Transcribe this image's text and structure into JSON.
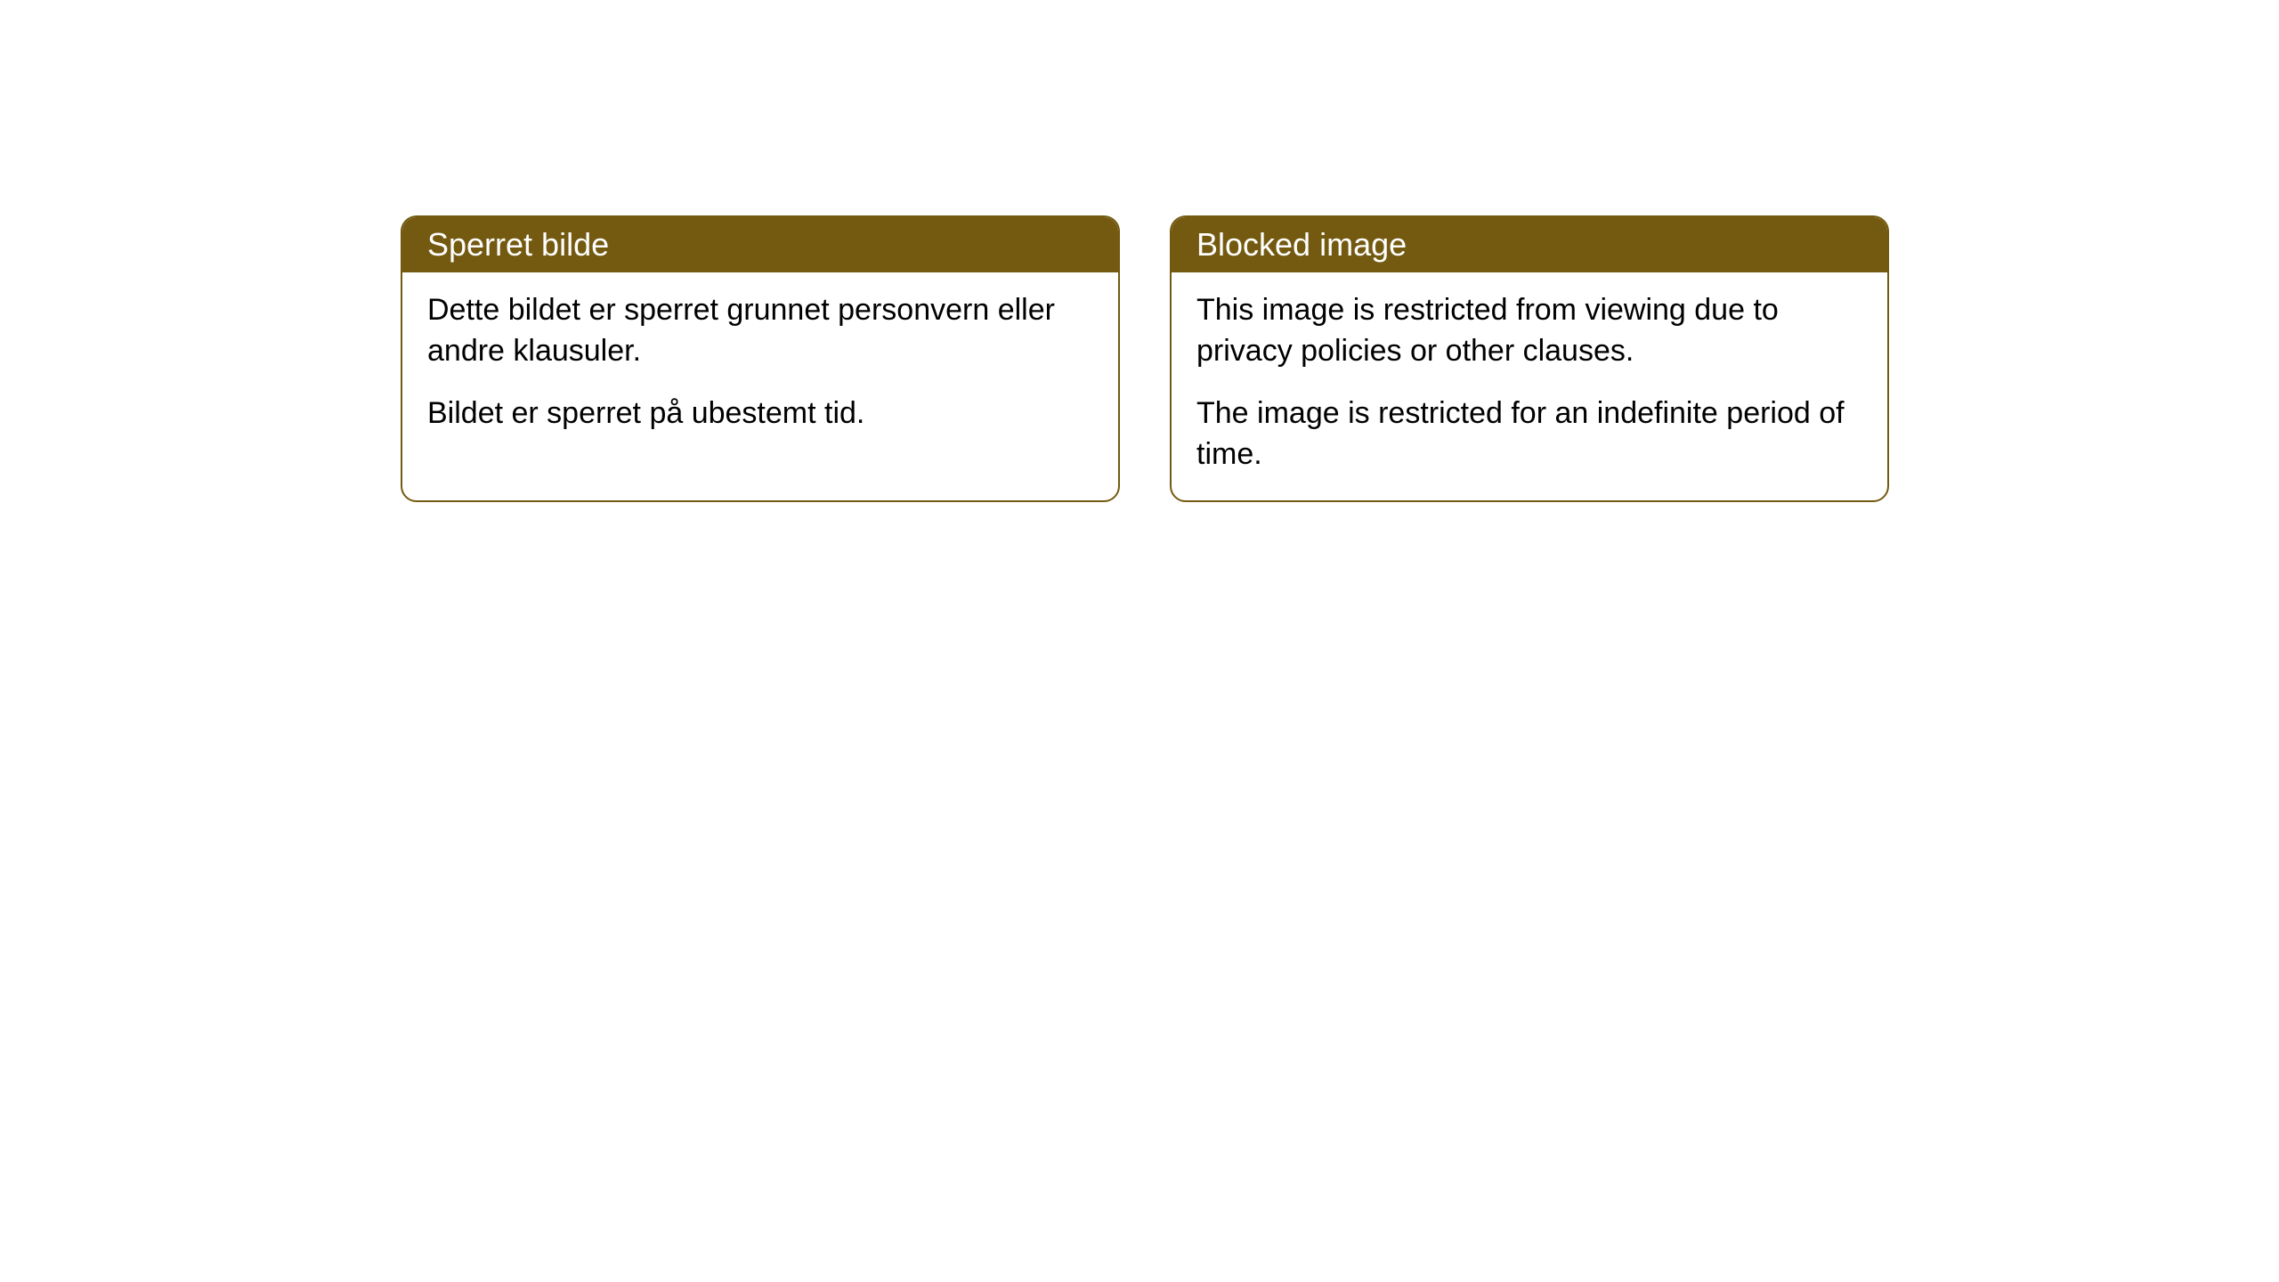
{
  "colors": {
    "header_bg": "#745a10",
    "header_text": "#ffffff",
    "body_bg": "#ffffff",
    "body_text": "#000000",
    "border": "#745a10"
  },
  "boxes": [
    {
      "title": "Sperret bilde",
      "paragraph1": "Dette bildet er sperret grunnet personvern eller andre klausuler.",
      "paragraph2": "Bildet er sperret på ubestemt tid."
    },
    {
      "title": "Blocked image",
      "paragraph1": "This image is restricted from viewing due to privacy policies or other clauses.",
      "paragraph2": "The image is restricted for an indefinite period of time."
    }
  ]
}
